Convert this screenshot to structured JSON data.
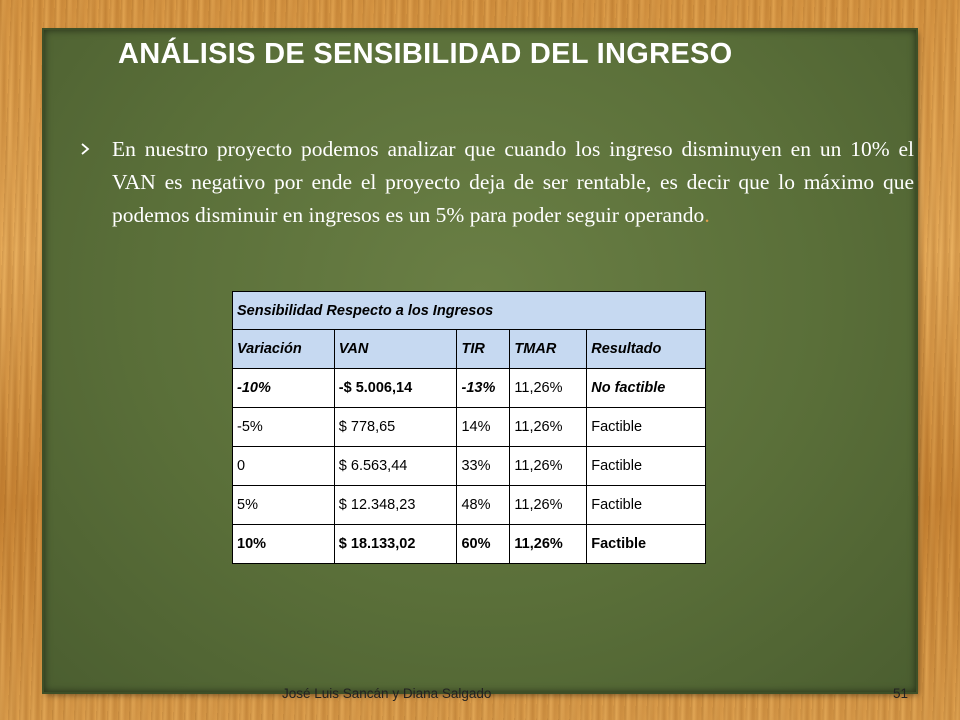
{
  "slide": {
    "title": "ANÁLISIS DE SENSIBILIDAD DEL INGRESO",
    "bullet_text": "En nuestro proyecto podemos analizar que cuando los  ingreso disminuyen en un 10% el VAN es negativo  por ende el  proyecto deja de ser rentable, es decir que lo máximo que podemos disminuir en ingresos es un 5% para poder seguir operando",
    "bullet_period": ".",
    "bullet_icon": "arrow-bullet-icon",
    "footer": "José Luis Sancán  y Diana Salgado",
    "page_number": "51"
  },
  "table": {
    "caption": "Sensibilidad  Respecto  a  los  Ingresos",
    "headers": [
      "Variación",
      "VAN",
      "TIR",
      "TMAR",
      "Resultado"
    ],
    "rows": [
      [
        "-10%",
        "-$ 5.006,14",
        "-13%",
        "11,26%",
        "No factible"
      ],
      [
        "-5%",
        "$ 778,65",
        "14%",
        "11,26%",
        "Factible"
      ],
      [
        "0",
        "$ 6.563,44",
        "33%",
        "11,26%",
        "Factible"
      ],
      [
        "5%",
        "$ 12.348,23",
        "48%",
        "11,26%",
        "Factible"
      ],
      [
        "10%",
        "$ 18.133,02",
        "60%",
        "11,26%",
        "Factible"
      ]
    ],
    "header_color": "#c6d9f1"
  }
}
